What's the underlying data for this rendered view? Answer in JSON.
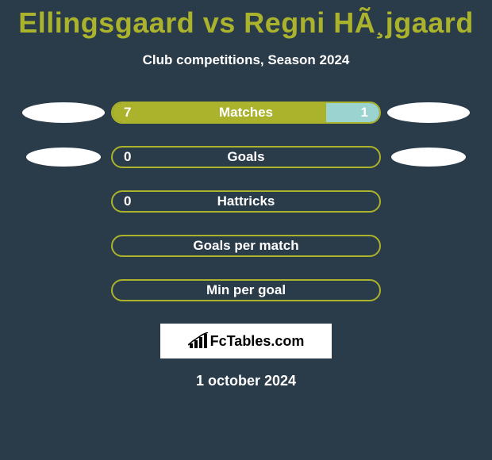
{
  "title": "Ellingsgaard vs Regni HÃ¸jgaard",
  "subtitle": "Club competitions, Season 2024",
  "date": "1 october 2024",
  "logo_text": "FcTables.com",
  "colors": {
    "background": "#2a3b4a",
    "accent": "#aab32b",
    "secondary": "#9bd3d0",
    "text": "#ffffff",
    "ellipse": "#ffffff",
    "logo_bg": "#ffffff",
    "logo_text": "#000000"
  },
  "rows": [
    {
      "label": "Matches",
      "left_val": "7",
      "right_val": "1",
      "left_pct": 80,
      "right_pct": 20,
      "show_left_ellipse": true,
      "show_right_ellipse": true,
      "ellipse_small": false
    },
    {
      "label": "Goals",
      "left_val": "0",
      "right_val": "",
      "left_pct": 0,
      "right_pct": 0,
      "show_left_ellipse": true,
      "show_right_ellipse": true,
      "ellipse_small": true
    },
    {
      "label": "Hattricks",
      "left_val": "0",
      "right_val": "",
      "left_pct": 0,
      "right_pct": 0,
      "show_left_ellipse": false,
      "show_right_ellipse": false,
      "ellipse_small": false
    },
    {
      "label": "Goals per match",
      "left_val": "",
      "right_val": "",
      "left_pct": 0,
      "right_pct": 0,
      "show_left_ellipse": false,
      "show_right_ellipse": false,
      "ellipse_small": false
    },
    {
      "label": "Min per goal",
      "left_val": "",
      "right_val": "",
      "left_pct": 0,
      "right_pct": 0,
      "show_left_ellipse": false,
      "show_right_ellipse": false,
      "ellipse_small": false
    }
  ]
}
